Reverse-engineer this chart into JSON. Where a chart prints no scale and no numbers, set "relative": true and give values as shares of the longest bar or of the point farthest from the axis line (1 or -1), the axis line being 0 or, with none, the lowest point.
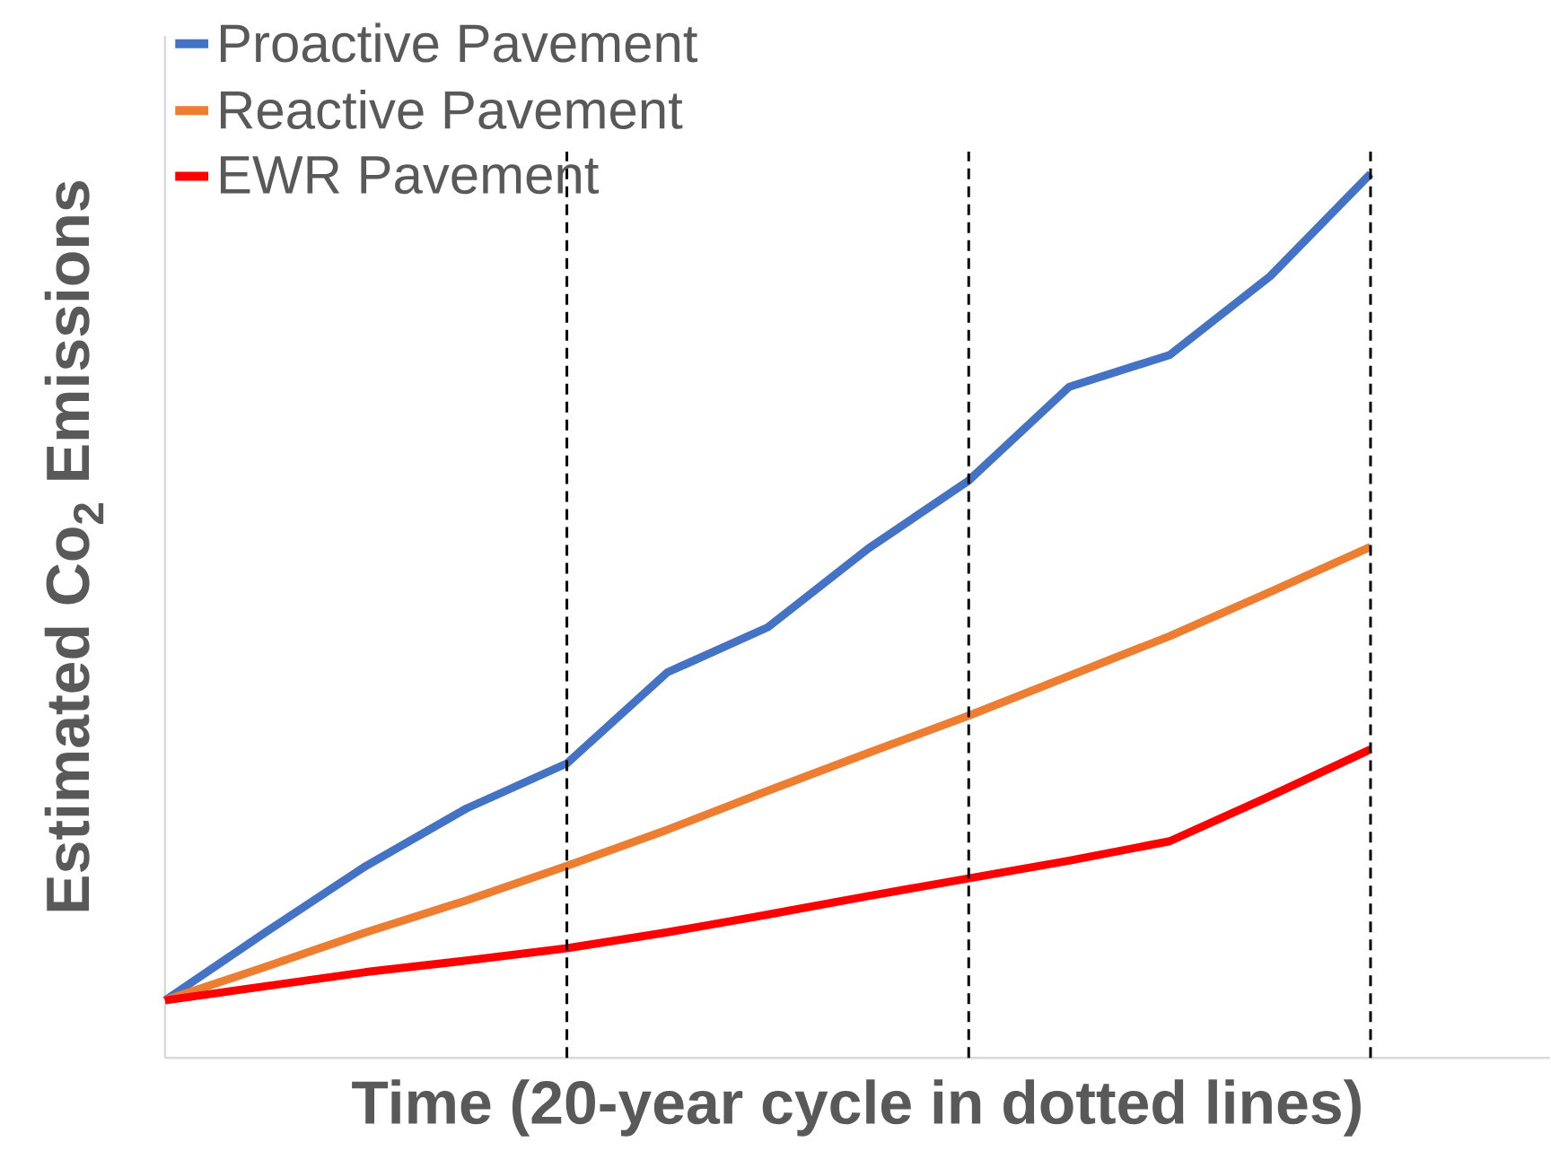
{
  "chart_data": {
    "type": "line",
    "relative": true,
    "xlabel": "Time (20-year cycle in dotted lines)",
    "ylabel": "Estimated Co$_{2}$ Emissions",
    "categories": [
      null,
      null,
      null,
      null,
      null,
      null,
      null,
      null,
      null,
      null,
      null,
      null,
      null
    ],
    "series": [
      {
        "name": "Proactive Pavement",
        "color": "#4472c4",
        "values": [
          0.065,
          0.142,
          0.217,
          0.282,
          0.333,
          0.436,
          0.487,
          0.576,
          0.653,
          0.759,
          0.795,
          0.884,
          1
        ]
      },
      {
        "name": "Reactive Pavement",
        "color": "#ed7d31",
        "values": [
          0.065,
          0.103,
          0.142,
          0.178,
          0.217,
          0.258,
          0.302,
          0.345,
          0.387,
          0.432,
          0.477,
          0.527,
          0.578
        ]
      },
      {
        "name": "EWR Pavement",
        "color": "#ff0000",
        "values": [
          0.065,
          0.081,
          0.097,
          0.11,
          0.124,
          0.142,
          0.162,
          0.183,
          0.203,
          0.223,
          0.245,
          0.296,
          0.349
        ]
      }
    ],
    "legend": "top left",
    "tick_labels": false,
    "grid": "x",
    "marker": "none",
    "line_style": "solid"
  }
}
